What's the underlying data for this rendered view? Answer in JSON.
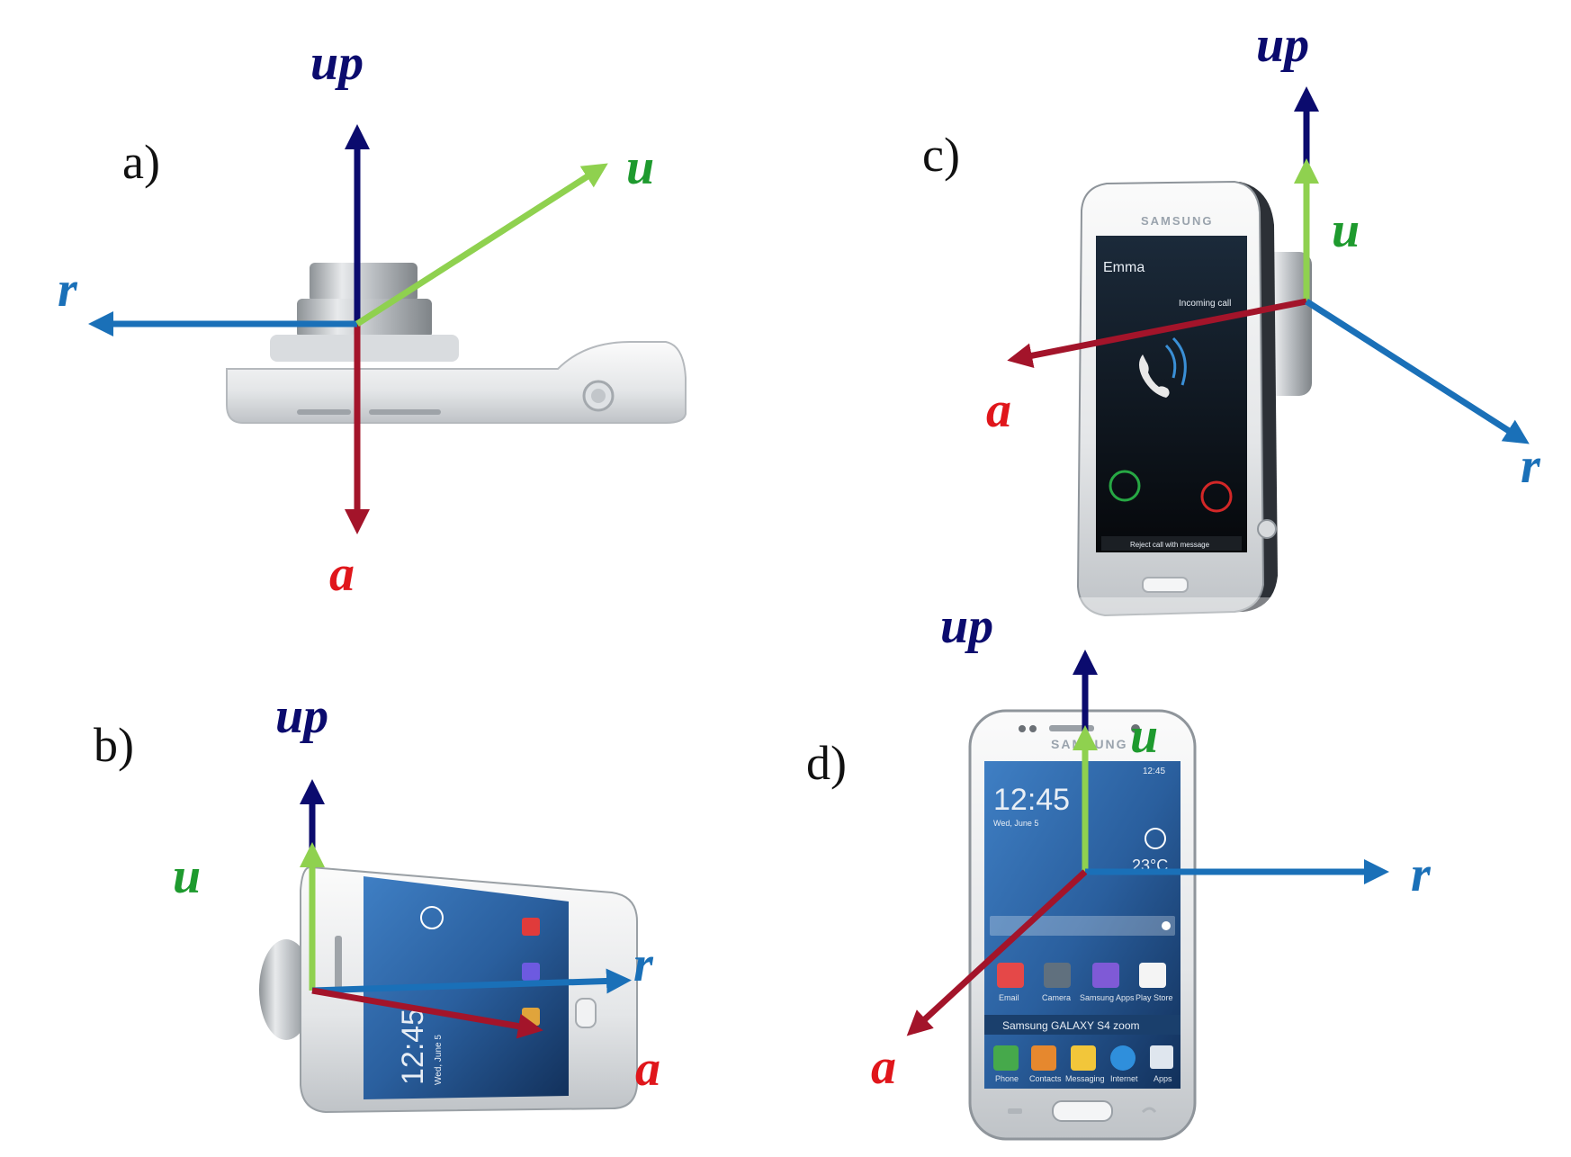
{
  "panels": {
    "a": {
      "label": "a)",
      "axes": {
        "up": "up",
        "u": "u",
        "r": "r",
        "a": "a"
      }
    },
    "b": {
      "label": "b)",
      "axes": {
        "up": "up",
        "u": "u",
        "r": "r",
        "a": "a"
      }
    },
    "c": {
      "label": "c)",
      "axes": {
        "up": "up",
        "u": "u",
        "r": "r",
        "a": "a"
      }
    },
    "d": {
      "label": "d)",
      "axes": {
        "up": "up",
        "u": "u",
        "r": "r",
        "a": "a"
      }
    }
  },
  "phone_screens": {
    "c": {
      "brand": "SAMSUNG",
      "caller": "Emma",
      "status": "Incoming call",
      "footer": "Reject call with message"
    },
    "d": {
      "brand": "SAMSUNG",
      "time": "12:45",
      "date": "Wed, June 5",
      "temperature": "23°C",
      "status_time": "12:45",
      "model": "Samsung GALAXY S4 zoom",
      "apps_row1": [
        "Email",
        "Camera",
        "Samsung Apps",
        "Play Store"
      ],
      "apps_row2": [
        "Phone",
        "Contacts",
        "Messaging",
        "Internet",
        "Apps"
      ]
    },
    "b": {
      "time": "12:45",
      "date": "Wed, June 5"
    }
  },
  "colors": {
    "up": "#0b0b6e",
    "u": "#8fd14f",
    "r": "#1a70b8",
    "a": "#a3142a",
    "u_label": "#1e9a2e",
    "a_label": "#e0161b"
  }
}
